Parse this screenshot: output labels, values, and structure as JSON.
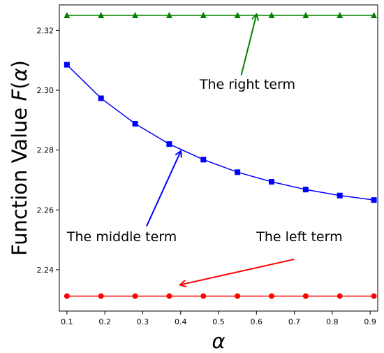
{
  "chart_data": {
    "type": "line",
    "xlabel": "α",
    "ylabel_prefix": "Function Value ",
    "ylabel_var": "F",
    "ylabel_paren_open": "(",
    "ylabel_alpha": "α",
    "ylabel_paren_close": ")",
    "xlim": [
      0.08,
      0.92
    ],
    "ylim": [
      2.2262,
      2.3285
    ],
    "x_ticks": [
      0.1,
      0.2,
      0.3,
      0.4,
      0.5,
      0.6,
      0.7,
      0.8,
      0.9
    ],
    "x_tick_labels": [
      "0.1",
      "0.2",
      "0.3",
      "0.4",
      "0.5",
      "0.6",
      "0.7",
      "0.8",
      "0.9"
    ],
    "y_ticks": [
      2.24,
      2.26,
      2.28,
      2.3,
      2.32
    ],
    "y_tick_labels": [
      "2.24",
      "2.26",
      "2.28",
      "2.30",
      "2.32"
    ],
    "x": [
      0.1,
      0.19,
      0.28,
      0.37,
      0.46,
      0.55,
      0.64,
      0.73,
      0.82,
      0.91
    ],
    "series": [
      {
        "key": "right",
        "color": "#008000",
        "marker": "triangle",
        "values": [
          2.325,
          2.325,
          2.325,
          2.325,
          2.325,
          2.325,
          2.325,
          2.325,
          2.325,
          2.325
        ]
      },
      {
        "key": "middle",
        "color": "#0000ff",
        "marker": "square",
        "values": [
          2.3085,
          2.2973,
          2.2888,
          2.282,
          2.2768,
          2.2726,
          2.2694,
          2.2668,
          2.2648,
          2.2633
        ]
      },
      {
        "key": "left",
        "color": "#ff0000",
        "marker": "circle",
        "values": [
          2.2312,
          2.2312,
          2.2312,
          2.2312,
          2.2312,
          2.2312,
          2.2312,
          2.2312,
          2.2312,
          2.2312
        ]
      }
    ],
    "annotations": [
      {
        "key": "right",
        "text": "The right term",
        "color": "#008000",
        "text_x": 0.45,
        "text_y": 2.3005,
        "arrow_from": [
          0.56,
          2.305
        ],
        "arrow_to": [
          0.6,
          2.3252
        ]
      },
      {
        "key": "middle",
        "text": "The middle term",
        "color": "#0000ff",
        "text_x": 0.1,
        "text_y": 2.2495,
        "arrow_from": [
          0.31,
          2.2545
        ],
        "arrow_to": [
          0.4,
          2.2795
        ]
      },
      {
        "key": "left",
        "text": "The left term",
        "color": "#ff0000",
        "text_x": 0.6,
        "text_y": 2.2495,
        "arrow_from": [
          0.7,
          2.2435
        ],
        "arrow_to": [
          0.4,
          2.235
        ]
      }
    ]
  }
}
